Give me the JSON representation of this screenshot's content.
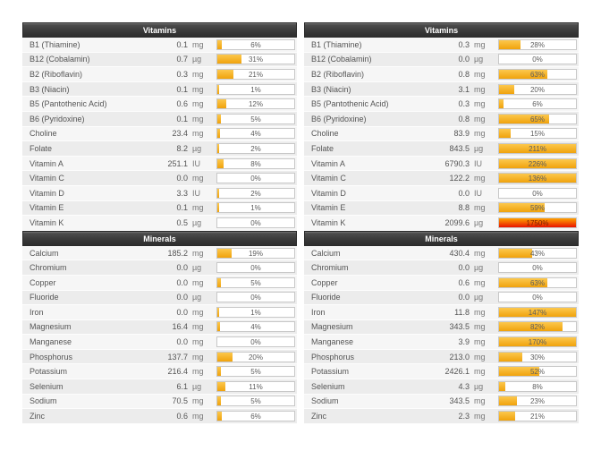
{
  "page": {
    "background": "#ffffff"
  },
  "colors": {
    "header_text": "#ffffff",
    "header_bg_top": "#757575",
    "header_bg_bottom": "#2e2e2e",
    "bar_fill_top": "#fcc84d",
    "bar_fill_bottom": "#f0a20c",
    "bar_over_top": "#ffa200",
    "bar_over_bottom": "#e81300",
    "row_light": "#f6f6f6",
    "row_dark": "#ececec"
  },
  "columns": [
    {
      "id": "left",
      "sections": [
        {
          "title": "Vitamins",
          "rows": [
            {
              "name": "B1 (Thiamine)",
              "value": "0.1",
              "unit": "mg",
              "percent": "6%",
              "percent_value": 6,
              "over": false
            },
            {
              "name": "B12 (Cobalamin)",
              "value": "0.7",
              "unit": "µg",
              "percent": "31%",
              "percent_value": 31,
              "over": false
            },
            {
              "name": "B2 (Riboflavin)",
              "value": "0.3",
              "unit": "mg",
              "percent": "21%",
              "percent_value": 21,
              "over": false
            },
            {
              "name": "B3 (Niacin)",
              "value": "0.1",
              "unit": "mg",
              "percent": "1%",
              "percent_value": 1,
              "over": false
            },
            {
              "name": "B5 (Pantothenic Acid)",
              "value": "0.6",
              "unit": "mg",
              "percent": "12%",
              "percent_value": 12,
              "over": false
            },
            {
              "name": "B6 (Pyridoxine)",
              "value": "0.1",
              "unit": "mg",
              "percent": "5%",
              "percent_value": 5,
              "over": false
            },
            {
              "name": "Choline",
              "value": "23.4",
              "unit": "mg",
              "percent": "4%",
              "percent_value": 4,
              "over": false
            },
            {
              "name": "Folate",
              "value": "8.2",
              "unit": "µg",
              "percent": "2%",
              "percent_value": 2,
              "over": false
            },
            {
              "name": "Vitamin A",
              "value": "251.1",
              "unit": "IU",
              "percent": "8%",
              "percent_value": 8,
              "over": false
            },
            {
              "name": "Vitamin C",
              "value": "0.0",
              "unit": "mg",
              "percent": "0%",
              "percent_value": 0,
              "over": false
            },
            {
              "name": "Vitamin D",
              "value": "3.3",
              "unit": "IU",
              "percent": "2%",
              "percent_value": 2,
              "over": false
            },
            {
              "name": "Vitamin E",
              "value": "0.1",
              "unit": "mg",
              "percent": "1%",
              "percent_value": 1,
              "over": false
            },
            {
              "name": "Vitamin K",
              "value": "0.5",
              "unit": "µg",
              "percent": "0%",
              "percent_value": 0,
              "over": false
            }
          ]
        },
        {
          "title": "Minerals",
          "rows": [
            {
              "name": "Calcium",
              "value": "185.2",
              "unit": "mg",
              "percent": "19%",
              "percent_value": 19,
              "over": false
            },
            {
              "name": "Chromium",
              "value": "0.0",
              "unit": "µg",
              "percent": "0%",
              "percent_value": 0,
              "over": false
            },
            {
              "name": "Copper",
              "value": "0.0",
              "unit": "mg",
              "percent": "5%",
              "percent_value": 5,
              "over": false
            },
            {
              "name": "Fluoride",
              "value": "0.0",
              "unit": "µg",
              "percent": "0%",
              "percent_value": 0,
              "over": false
            },
            {
              "name": "Iron",
              "value": "0.0",
              "unit": "mg",
              "percent": "1%",
              "percent_value": 1,
              "over": false
            },
            {
              "name": "Magnesium",
              "value": "16.4",
              "unit": "mg",
              "percent": "4%",
              "percent_value": 4,
              "over": false
            },
            {
              "name": "Manganese",
              "value": "0.0",
              "unit": "mg",
              "percent": "0%",
              "percent_value": 0,
              "over": false
            },
            {
              "name": "Phosphorus",
              "value": "137.7",
              "unit": "mg",
              "percent": "20%",
              "percent_value": 20,
              "over": false
            },
            {
              "name": "Potassium",
              "value": "216.4",
              "unit": "mg",
              "percent": "5%",
              "percent_value": 5,
              "over": false
            },
            {
              "name": "Selenium",
              "value": "6.1",
              "unit": "µg",
              "percent": "11%",
              "percent_value": 11,
              "over": false
            },
            {
              "name": "Sodium",
              "value": "70.5",
              "unit": "mg",
              "percent": "5%",
              "percent_value": 5,
              "over": false
            },
            {
              "name": "Zinc",
              "value": "0.6",
              "unit": "mg",
              "percent": "6%",
              "percent_value": 6,
              "over": false
            }
          ]
        }
      ]
    },
    {
      "id": "right",
      "sections": [
        {
          "title": "Vitamins",
          "rows": [
            {
              "name": "B1 (Thiamine)",
              "value": "0.3",
              "unit": "mg",
              "percent": "28%",
              "percent_value": 28,
              "over": false
            },
            {
              "name": "B12 (Cobalamin)",
              "value": "0.0",
              "unit": "µg",
              "percent": "0%",
              "percent_value": 0,
              "over": false
            },
            {
              "name": "B2 (Riboflavin)",
              "value": "0.8",
              "unit": "mg",
              "percent": "63%",
              "percent_value": 63,
              "over": false
            },
            {
              "name": "B3 (Niacin)",
              "value": "3.1",
              "unit": "mg",
              "percent": "20%",
              "percent_value": 20,
              "over": false
            },
            {
              "name": "B5 (Pantothenic Acid)",
              "value": "0.3",
              "unit": "mg",
              "percent": "6%",
              "percent_value": 6,
              "over": false
            },
            {
              "name": "B6 (Pyridoxine)",
              "value": "0.8",
              "unit": "mg",
              "percent": "65%",
              "percent_value": 65,
              "over": false
            },
            {
              "name": "Choline",
              "value": "83.9",
              "unit": "mg",
              "percent": "15%",
              "percent_value": 15,
              "over": false
            },
            {
              "name": "Folate",
              "value": "843.5",
              "unit": "µg",
              "percent": "211%",
              "percent_value": 211,
              "over": false
            },
            {
              "name": "Vitamin A",
              "value": "6790.3",
              "unit": "IU",
              "percent": "226%",
              "percent_value": 226,
              "over": false
            },
            {
              "name": "Vitamin C",
              "value": "122.2",
              "unit": "mg",
              "percent": "136%",
              "percent_value": 136,
              "over": false
            },
            {
              "name": "Vitamin D",
              "value": "0.0",
              "unit": "IU",
              "percent": "0%",
              "percent_value": 0,
              "over": false
            },
            {
              "name": "Vitamin E",
              "value": "8.8",
              "unit": "mg",
              "percent": "59%",
              "percent_value": 59,
              "over": false
            },
            {
              "name": "Vitamin K",
              "value": "2099.6",
              "unit": "µg",
              "percent": "1750%",
              "percent_value": 1750,
              "over": true
            }
          ]
        },
        {
          "title": "Minerals",
          "rows": [
            {
              "name": "Calcium",
              "value": "430.4",
              "unit": "mg",
              "percent": "43%",
              "percent_value": 43,
              "over": false
            },
            {
              "name": "Chromium",
              "value": "0.0",
              "unit": "µg",
              "percent": "0%",
              "percent_value": 0,
              "over": false
            },
            {
              "name": "Copper",
              "value": "0.6",
              "unit": "mg",
              "percent": "63%",
              "percent_value": 63,
              "over": false
            },
            {
              "name": "Fluoride",
              "value": "0.0",
              "unit": "µg",
              "percent": "0%",
              "percent_value": 0,
              "over": false
            },
            {
              "name": "Iron",
              "value": "11.8",
              "unit": "mg",
              "percent": "147%",
              "percent_value": 147,
              "over": false
            },
            {
              "name": "Magnesium",
              "value": "343.5",
              "unit": "mg",
              "percent": "82%",
              "percent_value": 82,
              "over": false
            },
            {
              "name": "Manganese",
              "value": "3.9",
              "unit": "mg",
              "percent": "170%",
              "percent_value": 170,
              "over": false
            },
            {
              "name": "Phosphorus",
              "value": "213.0",
              "unit": "mg",
              "percent": "30%",
              "percent_value": 30,
              "over": false
            },
            {
              "name": "Potassium",
              "value": "2426.1",
              "unit": "mg",
              "percent": "52%",
              "percent_value": 52,
              "over": false
            },
            {
              "name": "Selenium",
              "value": "4.3",
              "unit": "µg",
              "percent": "8%",
              "percent_value": 8,
              "over": false
            },
            {
              "name": "Sodium",
              "value": "343.5",
              "unit": "mg",
              "percent": "23%",
              "percent_value": 23,
              "over": false
            },
            {
              "name": "Zinc",
              "value": "2.3",
              "unit": "mg",
              "percent": "21%",
              "percent_value": 21,
              "over": false
            }
          ]
        }
      ]
    }
  ]
}
